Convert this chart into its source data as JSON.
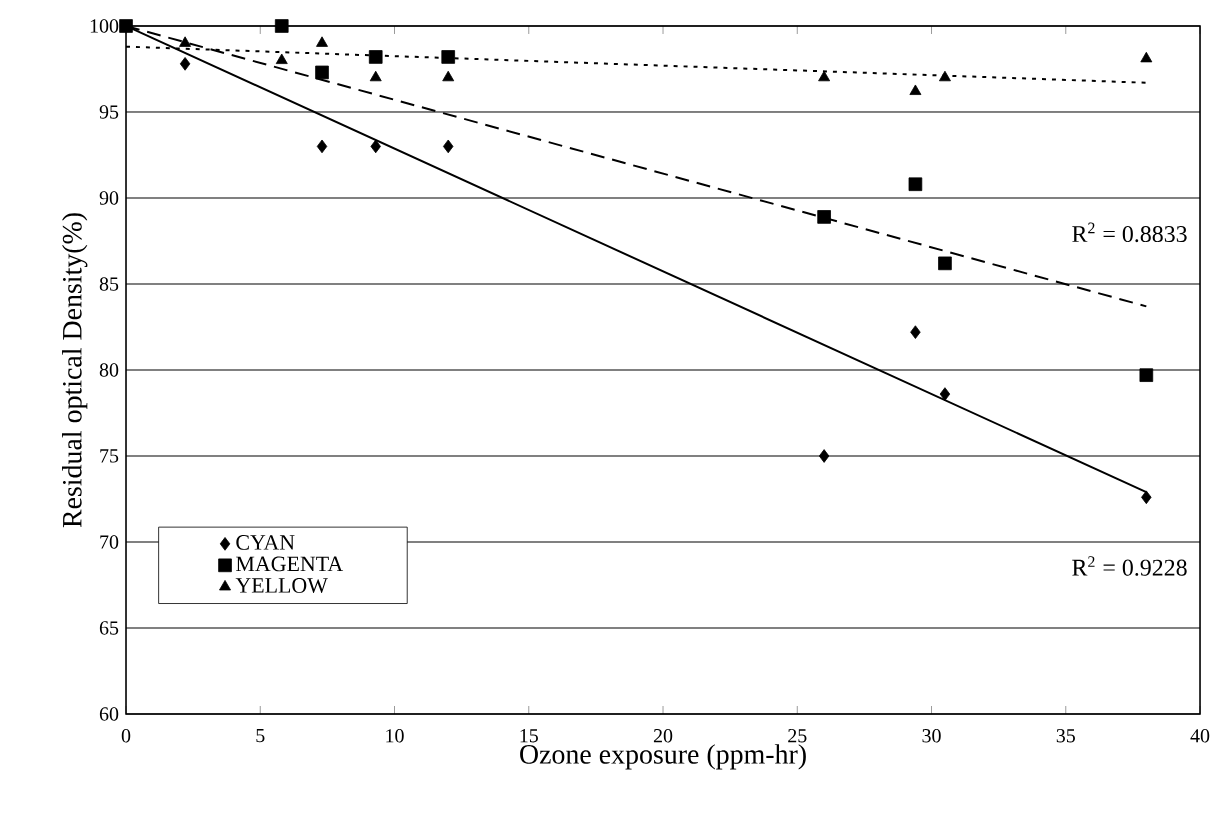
{
  "chart_data": {
    "type": "scatter",
    "xlabel": "Ozone exposure (ppm-hr)",
    "ylabel": "Residual optical Density(%)",
    "xlim": [
      0,
      40
    ],
    "ylim": [
      60,
      100
    ],
    "xticks": [
      0,
      5,
      10,
      15,
      20,
      25,
      30,
      35,
      40
    ],
    "yticks": [
      60,
      65,
      70,
      75,
      80,
      85,
      90,
      95,
      100
    ],
    "grid": "y",
    "legend": "bottom left",
    "annotations": [
      "R$^{2}$ = 0.8833",
      "R$^{2}$ = 0.9228"
    ],
    "series": [
      {
        "name": "CYAN",
        "color": "#000000",
        "marker": "diamond",
        "x": [
          2.2,
          7.3,
          9.3,
          12,
          26,
          29.4,
          30.5,
          38
        ],
        "values": [
          97.8,
          93,
          93,
          93,
          75,
          82.2,
          78.6,
          72.6
        ]
      },
      {
        "name": "MAGENTA",
        "color": "#000000",
        "marker": "square",
        "x": [
          0,
          5.8,
          7.3,
          9.3,
          12,
          26,
          29.4,
          30.5,
          38
        ],
        "values": [
          100,
          100,
          97.3,
          98.2,
          98.2,
          88.9,
          90.8,
          86.2,
          79.7
        ]
      },
      {
        "name": "YELLOW",
        "color": "#000000",
        "marker": "triangle",
        "x": [
          2.2,
          5.8,
          7.3,
          9.3,
          12,
          26,
          29.4,
          30.5,
          38
        ],
        "values": [
          99,
          98,
          99,
          97,
          97,
          97,
          96.2,
          97,
          98.1
        ]
      },
      {
        "type": "line",
        "color": "#000000",
        "line_style": "solid",
        "x": [
          0,
          38
        ],
        "values": [
          100,
          72.9
        ]
      },
      {
        "type": "line",
        "color": "#000000",
        "line_style": "dashed",
        "x": [
          0,
          38
        ],
        "values": [
          100,
          83.7
        ]
      },
      {
        "type": "line",
        "color": "#000000",
        "line_style": "dotted",
        "x": [
          0,
          38
        ],
        "values": [
          98.8,
          96.7
        ]
      }
    ]
  }
}
